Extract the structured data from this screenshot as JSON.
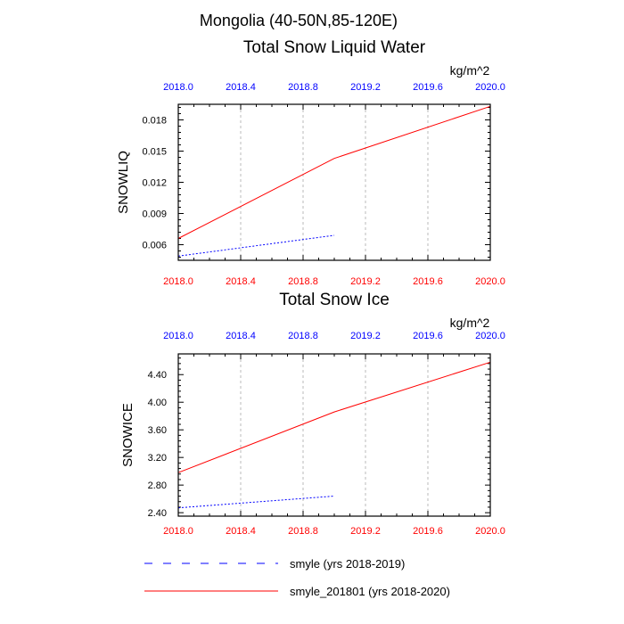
{
  "page": {
    "title": "Mongolia (40-50N,85-120E)"
  },
  "chart_data": [
    {
      "type": "line",
      "title": "Total Snow Liquid Water",
      "units": "kg/m^2",
      "ylabel": "SNOWLIQ",
      "xlim": [
        2018.0,
        2020.0
      ],
      "ylim": [
        0.0045,
        0.0195
      ],
      "xticks": [
        2018.0,
        2018.4,
        2018.8,
        2019.2,
        2019.6,
        2020.0
      ],
      "xtick_labels": [
        "2018.0",
        "2018.4",
        "2018.8",
        "2019.2",
        "2019.6",
        "2020.0"
      ],
      "yticks": [
        0.006,
        0.009,
        0.012,
        0.015,
        0.018
      ],
      "ytick_labels": [
        "0.006",
        "0.009",
        "0.012",
        "0.015",
        "0.018"
      ],
      "top_axis_color": "#0000ff",
      "bottom_axis_color": "#ff0000",
      "vertical_grid": true,
      "series": [
        {
          "name": "smyle (yrs 2018-2019)",
          "color": "#0000ff",
          "dash": "dotted",
          "x": [
            2018.0,
            2019.0
          ],
          "y": [
            0.0049,
            0.0069
          ]
        },
        {
          "name": "smyle_201801 (yrs 2018-2020)",
          "color": "#ff0000",
          "dash": "solid",
          "x": [
            2018.0,
            2019.0,
            2020.0
          ],
          "y": [
            0.0066,
            0.0143,
            0.0193
          ]
        }
      ]
    },
    {
      "type": "line",
      "title": "Total Snow Ice",
      "units": "kg/m^2",
      "ylabel": "SNOWICE",
      "xlim": [
        2018.0,
        2020.0
      ],
      "ylim": [
        2.35,
        4.7
      ],
      "xticks": [
        2018.0,
        2018.4,
        2018.8,
        2019.2,
        2019.6,
        2020.0
      ],
      "xtick_labels": [
        "2018.0",
        "2018.4",
        "2018.8",
        "2019.2",
        "2019.6",
        "2020.0"
      ],
      "yticks": [
        2.4,
        2.8,
        3.2,
        3.6,
        4.0,
        4.4
      ],
      "ytick_labels": [
        "2.40",
        "2.80",
        "3.20",
        "3.60",
        "4.00",
        "4.40"
      ],
      "top_axis_color": "#0000ff",
      "bottom_axis_color": "#ff0000",
      "vertical_grid": true,
      "series": [
        {
          "name": "smyle (yrs 2018-2019)",
          "color": "#0000ff",
          "dash": "dotted",
          "x": [
            2018.0,
            2019.0
          ],
          "y": [
            2.47,
            2.64
          ]
        },
        {
          "name": "smyle_201801 (yrs 2018-2020)",
          "color": "#ff0000",
          "dash": "solid",
          "x": [
            2018.0,
            2019.0,
            2020.0
          ],
          "y": [
            2.98,
            3.86,
            4.58
          ]
        }
      ]
    }
  ],
  "legend": {
    "placement": "bottom",
    "items": [
      {
        "label": "smyle (yrs 2018-2019)",
        "color": "#0000ff",
        "dash": "dashed"
      },
      {
        "label": "smyle_201801 (yrs 2018-2020)",
        "color": "#ff0000",
        "dash": "solid"
      }
    ]
  }
}
